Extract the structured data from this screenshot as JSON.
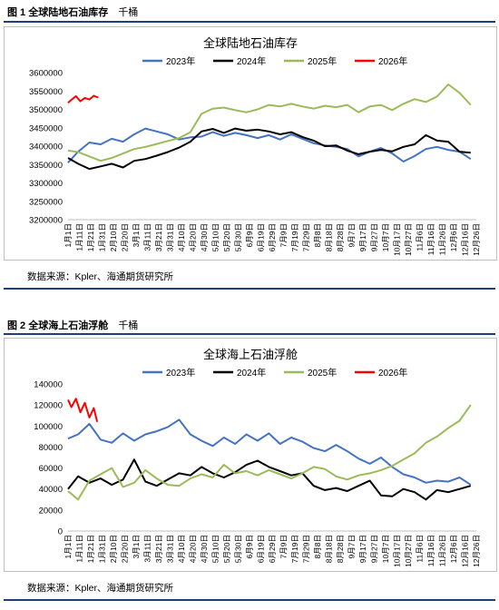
{
  "figure1": {
    "caption_number": "图 1",
    "caption_title": "全球陆地石油库存",
    "unit": "千桶",
    "source": "数据来源：Kpler、海通期货研究所"
  },
  "figure2": {
    "caption_number": "图 2",
    "caption_title": "全球海上石油浮舱",
    "unit": "千桶",
    "source": "数据来源：Kpler、海通期货研究所"
  },
  "chart_data": [
    {
      "type": "line",
      "title": "全球陆地石油库存",
      "xlabel": "",
      "ylabel": "",
      "ylim": [
        3200000,
        3600000
      ],
      "yticks": [
        3200000,
        3250000,
        3300000,
        3350000,
        3400000,
        3450000,
        3500000,
        3550000,
        3600000
      ],
      "xticks": [
        "1月1日",
        "1月11日",
        "1月21日",
        "1月31日",
        "2月10日",
        "2月20日",
        "3月1日",
        "3月11日",
        "3月21日",
        "3月31日",
        "4月10日",
        "4月20日",
        "4月30日",
        "5月10日",
        "5月20日",
        "5月30日",
        "6月9日",
        "6月19日",
        "6月29日",
        "7月9日",
        "7月19日",
        "7月29日",
        "8月8日",
        "8月18日",
        "8月28日",
        "9月7日",
        "9月17日",
        "9月27日",
        "10月7日",
        "10月17日",
        "10月27日",
        "11月6日",
        "11月16日",
        "11月26日",
        "12月6日",
        "12月16日",
        "12月26日"
      ],
      "legend_position": "top",
      "grid": false,
      "series": [
        {
          "name": "2023年",
          "color": "#4472c4",
          "x": [
            1,
            10,
            20,
            30,
            40,
            50,
            60,
            70,
            80,
            90,
            100,
            110,
            120,
            130,
            140,
            150,
            160,
            170,
            180,
            190,
            200,
            210,
            220,
            230,
            240,
            250,
            260,
            270,
            280,
            290,
            300,
            310,
            320,
            330,
            340,
            350,
            360
          ],
          "values": [
            3355000,
            3385000,
            3410000,
            3405000,
            3420000,
            3412000,
            3432000,
            3448000,
            3440000,
            3432000,
            3418000,
            3424000,
            3426000,
            3438000,
            3428000,
            3436000,
            3430000,
            3422000,
            3430000,
            3418000,
            3432000,
            3420000,
            3408000,
            3402000,
            3398000,
            3392000,
            3372000,
            3385000,
            3395000,
            3380000,
            3358000,
            3373000,
            3392000,
            3398000,
            3390000,
            3385000,
            3365000
          ]
        },
        {
          "name": "2024年",
          "color": "#000000",
          "x": [
            1,
            10,
            20,
            30,
            40,
            50,
            60,
            70,
            80,
            90,
            100,
            110,
            120,
            130,
            140,
            150,
            160,
            170,
            180,
            190,
            200,
            210,
            220,
            230,
            240,
            250,
            260,
            270,
            280,
            290,
            300,
            310,
            320,
            330,
            340,
            350,
            360
          ],
          "values": [
            3368000,
            3352000,
            3338000,
            3345000,
            3352000,
            3342000,
            3360000,
            3365000,
            3374000,
            3384000,
            3396000,
            3412000,
            3440000,
            3447000,
            3436000,
            3448000,
            3442000,
            3445000,
            3440000,
            3432000,
            3438000,
            3425000,
            3415000,
            3400000,
            3402000,
            3388000,
            3378000,
            3385000,
            3390000,
            3386000,
            3398000,
            3405000,
            3430000,
            3415000,
            3412000,
            3385000,
            3382000
          ]
        },
        {
          "name": "2025年",
          "color": "#9bbb59",
          "x": [
            1,
            10,
            20,
            30,
            40,
            50,
            60,
            70,
            80,
            90,
            100,
            110,
            120,
            130,
            140,
            150,
            160,
            170,
            180,
            190,
            200,
            210,
            220,
            230,
            240,
            250,
            260,
            270,
            280,
            290,
            300,
            310,
            320,
            330,
            340,
            350,
            360
          ],
          "values": [
            3388000,
            3384000,
            3372000,
            3360000,
            3368000,
            3380000,
            3392000,
            3398000,
            3406000,
            3414000,
            3422000,
            3438000,
            3488000,
            3502000,
            3505000,
            3498000,
            3492000,
            3500000,
            3512000,
            3508000,
            3515000,
            3508000,
            3502000,
            3510000,
            3506000,
            3512000,
            3492000,
            3508000,
            3512000,
            3498000,
            3515000,
            3528000,
            3520000,
            3535000,
            3568000,
            3545000,
            3512000
          ]
        },
        {
          "name": "2026年",
          "color": "#ff0000",
          "x": [
            1,
            4,
            8,
            12,
            16,
            20,
            24,
            28
          ],
          "values": [
            3518000,
            3526000,
            3536000,
            3522000,
            3531000,
            3527000,
            3537000,
            3532000
          ]
        }
      ]
    },
    {
      "type": "line",
      "title": "全球海上石油浮舱",
      "xlabel": "",
      "ylabel": "",
      "ylim": [
        0,
        140000
      ],
      "yticks": [
        0,
        20000,
        40000,
        60000,
        80000,
        100000,
        120000,
        140000
      ],
      "xticks": [
        "1月1日",
        "1月11日",
        "1月21日",
        "1月31日",
        "2月10日",
        "2月20日",
        "3月1日",
        "3月11日",
        "3月21日",
        "3月31日",
        "4月10日",
        "4月20日",
        "4月30日",
        "5月10日",
        "5月20日",
        "5月30日",
        "6月9日",
        "6月19日",
        "6月29日",
        "7月9日",
        "7月19日",
        "7月29日",
        "8月8日",
        "8月18日",
        "8月28日",
        "9月7日",
        "9月17日",
        "9月27日",
        "10月7日",
        "10月17日",
        "10月27日",
        "11月6日",
        "11月16日",
        "11月26日",
        "12月6日",
        "12月16日",
        "12月26日"
      ],
      "legend_position": "top",
      "grid": false,
      "series": [
        {
          "name": "2023年",
          "color": "#4472c4",
          "x": [
            1,
            10,
            20,
            30,
            40,
            50,
            60,
            70,
            80,
            90,
            100,
            110,
            120,
            130,
            140,
            150,
            160,
            170,
            180,
            190,
            200,
            210,
            220,
            230,
            240,
            250,
            260,
            270,
            280,
            290,
            300,
            310,
            320,
            330,
            340,
            350,
            360
          ],
          "values": [
            88000,
            92000,
            102000,
            87000,
            84000,
            93000,
            86000,
            92000,
            95000,
            99000,
            106000,
            92000,
            86000,
            81000,
            89000,
            83000,
            92000,
            86000,
            93000,
            83000,
            89000,
            85000,
            79000,
            76000,
            82000,
            76000,
            69000,
            64000,
            70000,
            61000,
            54000,
            51000,
            46000,
            48000,
            47000,
            51000,
            44000
          ]
        },
        {
          "name": "2024年",
          "color": "#000000",
          "x": [
            1,
            10,
            20,
            30,
            40,
            50,
            60,
            70,
            80,
            90,
            100,
            110,
            120,
            130,
            140,
            150,
            160,
            170,
            180,
            190,
            200,
            210,
            220,
            230,
            240,
            250,
            260,
            270,
            280,
            290,
            300,
            310,
            320,
            330,
            340,
            350,
            360
          ],
          "values": [
            40000,
            52000,
            46000,
            50000,
            44000,
            49000,
            68000,
            47000,
            43000,
            49000,
            55000,
            53000,
            61000,
            55000,
            51000,
            56000,
            63000,
            67000,
            61000,
            57000,
            53000,
            55000,
            43000,
            39000,
            41000,
            38000,
            43000,
            48000,
            34000,
            33000,
            40000,
            37000,
            30000,
            39000,
            37000,
            40000,
            43000
          ]
        },
        {
          "name": "2025年",
          "color": "#9bbb59",
          "x": [
            1,
            10,
            20,
            30,
            40,
            50,
            60,
            70,
            80,
            90,
            100,
            110,
            120,
            130,
            140,
            150,
            160,
            170,
            180,
            190,
            200,
            210,
            220,
            230,
            240,
            250,
            260,
            270,
            280,
            290,
            300,
            310,
            320,
            330,
            340,
            350,
            360
          ],
          "values": [
            38000,
            30000,
            48000,
            54000,
            60000,
            42000,
            46000,
            58000,
            50000,
            44000,
            43000,
            50000,
            54000,
            51000,
            63000,
            55000,
            57000,
            53000,
            58000,
            54000,
            50000,
            55000,
            61000,
            59000,
            52000,
            49000,
            53000,
            55000,
            58000,
            62000,
            68000,
            74000,
            84000,
            90000,
            98000,
            105000,
            120000
          ]
        },
        {
          "name": "2026年",
          "color": "#ff0000",
          "x": [
            1,
            4,
            8,
            12,
            16,
            20,
            24,
            27
          ],
          "values": [
            125000,
            118000,
            126000,
            113000,
            122000,
            108000,
            117000,
            104000
          ]
        }
      ]
    }
  ]
}
